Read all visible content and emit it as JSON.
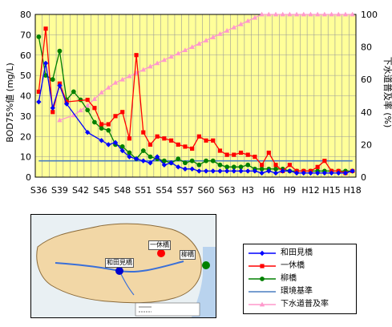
{
  "chart_data": {
    "type": "line",
    "ylabel_left": "BOD75%値 (mg/L)",
    "ylabel_right": "下水道普及率 (%)",
    "ylim_left": [
      0,
      80
    ],
    "ylim_right": [
      0,
      100
    ],
    "yticks_left": [
      "0",
      "10",
      "20",
      "30",
      "40",
      "50",
      "60",
      "70",
      "80"
    ],
    "yticks_right": [
      "0",
      "20",
      "40",
      "60",
      "80",
      "100"
    ],
    "x_tick_labels": [
      "S36",
      "S39",
      "S42",
      "S45",
      "S48",
      "S51",
      "S54",
      "S57",
      "S60",
      "S63",
      "H3",
      "H6",
      "H9",
      "H12",
      "H15",
      "H18"
    ],
    "x_years": [
      1961,
      1962,
      1963,
      1964,
      1965,
      1966,
      1967,
      1968,
      1969,
      1970,
      1971,
      1972,
      1973,
      1974,
      1975,
      1976,
      1977,
      1978,
      1979,
      1980,
      1981,
      1982,
      1983,
      1984,
      1985,
      1986,
      1987,
      1988,
      1989,
      1990,
      1991,
      1992,
      1993,
      1994,
      1995,
      1996,
      1997,
      1998,
      1999,
      2000,
      2001,
      2002,
      2003,
      2004,
      2005,
      2006
    ],
    "grid": true,
    "plot_background": "#ffff99",
    "series": [
      {
        "name": "和田見橋",
        "axis": "left",
        "color": "#0000ff",
        "marker": "diamond",
        "values": [
          37,
          56,
          34,
          45,
          36,
          null,
          null,
          22,
          null,
          18,
          16,
          17,
          13,
          10,
          9,
          8,
          7,
          10,
          6,
          7,
          5,
          4,
          4,
          3,
          3,
          3,
          3,
          3,
          3,
          3,
          3,
          3,
          2,
          3,
          2,
          3,
          3,
          2,
          2,
          2,
          2,
          2,
          2,
          2,
          2,
          3
        ]
      },
      {
        "name": "一休橋",
        "axis": "left",
        "color": "#ff0000",
        "marker": "square",
        "values": [
          42,
          73,
          32,
          46,
          37,
          null,
          null,
          38,
          34,
          26,
          26,
          30,
          32,
          19,
          60,
          22,
          16,
          20,
          19,
          18,
          16,
          15,
          14,
          20,
          18,
          18,
          13,
          11,
          11,
          12,
          11,
          10,
          6,
          12,
          6,
          3,
          6,
          3,
          3,
          3,
          5,
          8,
          3,
          3,
          2,
          3
        ]
      },
      {
        "name": "柳橋",
        "axis": "left",
        "color": "#008000",
        "marker": "circle",
        "values": [
          69,
          50,
          48,
          62,
          38,
          42,
          38,
          33,
          27,
          24,
          23,
          16,
          15,
          12,
          9,
          13,
          10,
          9,
          8,
          7,
          9,
          7,
          8,
          6,
          8,
          8,
          6,
          5,
          5,
          5,
          6,
          4,
          4,
          4,
          4,
          4,
          3,
          3,
          3,
          3,
          3,
          3,
          3,
          3,
          3,
          3
        ]
      },
      {
        "name": "環境基準",
        "axis": "left",
        "color": "#4a7fc1",
        "marker": "none",
        "values": [
          8,
          8,
          8,
          8,
          8,
          8,
          8,
          8,
          8,
          8,
          8,
          8,
          8,
          8,
          8,
          8,
          8,
          8,
          8,
          8,
          8,
          8,
          8,
          8,
          8,
          8,
          8,
          8,
          8,
          8,
          8,
          8,
          8,
          8,
          8,
          8,
          8,
          8,
          8,
          8,
          8,
          8,
          8,
          8,
          8,
          8
        ]
      },
      {
        "name": "下水道普及率",
        "axis": "right",
        "color": "#ff99cc",
        "marker": "triangle",
        "values": [
          null,
          null,
          null,
          35,
          null,
          38,
          41,
          44,
          48,
          52,
          55,
          58,
          60,
          62,
          64,
          66,
          68,
          70,
          72,
          74,
          76,
          78,
          80,
          82,
          84,
          86,
          88,
          90,
          92,
          94,
          96,
          98,
          100,
          100,
          100,
          100,
          100,
          100,
          100,
          100,
          100,
          100,
          100,
          100,
          100,
          100
        ]
      }
    ]
  },
  "map": {
    "stations": [
      {
        "label": "和田見橋",
        "color": "#0000cc"
      },
      {
        "label": "一休橋",
        "color": "#ff0000"
      },
      {
        "label": "柳橋",
        "color": "#008000"
      }
    ]
  }
}
